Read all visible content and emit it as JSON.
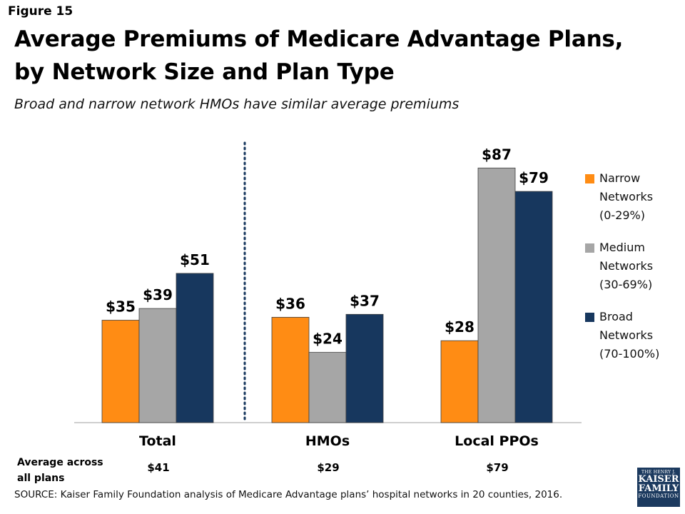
{
  "figure_label": "Figure 15",
  "avg_label": "Average across\nall plans",
  "averages": [
    "$41",
    "$29",
    "$79"
  ],
  "source": "SOURCE: Kaiser Family Foundation analysis of Medicare Advantage plans’ hospital networks in 20 counties, 2016.",
  "logo": {
    "line1": "THE HENRY J.",
    "line2": "KAISER",
    "line3": "FAMILY",
    "line4": "FOUNDATION"
  },
  "colors": {
    "narrow": "#FF8C14",
    "medium": "#A6A6A6",
    "broad": "#17375E",
    "divider": "#17375E"
  },
  "chart_data": {
    "type": "bar",
    "title": "Average Premiums of Medicare Advantage Plans, by Network Size and Plan Type",
    "subtitle": "Broad and narrow network HMOs have similar average premiums",
    "categories": [
      "Total",
      "HMOs",
      "Local PPOs"
    ],
    "series": [
      {
        "name": "Narrow\nNetworks\n(0-29%)",
        "values": [
          35,
          36,
          28
        ],
        "labels": [
          "$35",
          "$36",
          "$28"
        ]
      },
      {
        "name": "Medium\nNetworks\n(30-69%)",
        "values": [
          39,
          24,
          87
        ],
        "labels": [
          "$39",
          "$24",
          "$87"
        ]
      },
      {
        "name": "Broad\nNetworks\n(70-100%)",
        "values": [
          51,
          37,
          79
        ],
        "labels": [
          "$51",
          "$37",
          "$79"
        ]
      }
    ],
    "ylim": [
      0,
      90
    ],
    "grid": false,
    "legend": "right"
  }
}
